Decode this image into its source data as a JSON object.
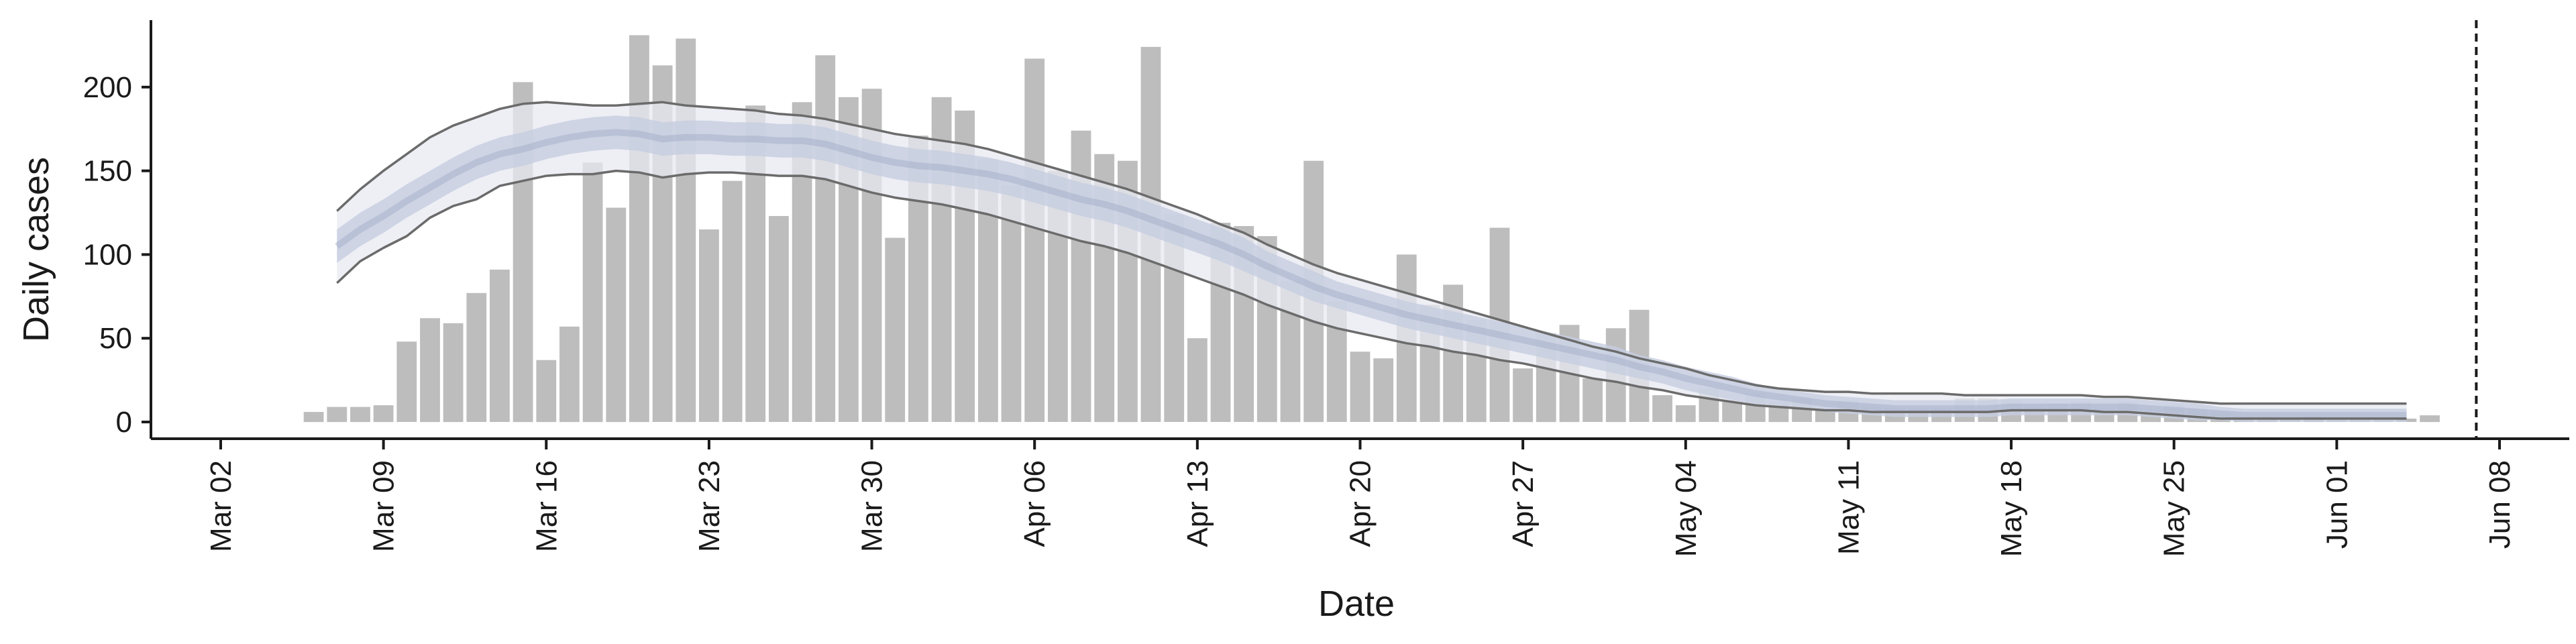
{
  "chart_data": {
    "type": "bar",
    "xlabel": "Date",
    "ylabel": "Daily cases",
    "ylim": [
      -10,
      240
    ],
    "xlim": [
      "2020-02-28",
      "2020-06-11"
    ],
    "x_ticks": [
      {
        "date": "2020-03-02",
        "label": "Mar 02"
      },
      {
        "date": "2020-03-09",
        "label": "Mar 09"
      },
      {
        "date": "2020-03-16",
        "label": "Mar 16"
      },
      {
        "date": "2020-03-23",
        "label": "Mar 23"
      },
      {
        "date": "2020-03-30",
        "label": "Mar 30"
      },
      {
        "date": "2020-04-06",
        "label": "Apr 06"
      },
      {
        "date": "2020-04-13",
        "label": "Apr 13"
      },
      {
        "date": "2020-04-20",
        "label": "Apr 20"
      },
      {
        "date": "2020-04-27",
        "label": "Apr 27"
      },
      {
        "date": "2020-05-04",
        "label": "May 04"
      },
      {
        "date": "2020-05-11",
        "label": "May 11"
      },
      {
        "date": "2020-05-18",
        "label": "May 18"
      },
      {
        "date": "2020-05-25",
        "label": "May 25"
      },
      {
        "date": "2020-06-01",
        "label": "Jun 01"
      },
      {
        "date": "2020-06-08",
        "label": "Jun 08"
      }
    ],
    "y_ticks": [
      0,
      50,
      100,
      150,
      200
    ],
    "bars": {
      "start": "2020-03-06",
      "values": [
        6,
        9,
        9,
        10,
        48,
        62,
        59,
        77,
        91,
        203,
        37,
        57,
        155,
        128,
        231,
        213,
        229,
        115,
        144,
        189,
        123,
        191,
        219,
        194,
        199,
        110,
        171,
        194,
        186,
        157,
        141,
        217,
        150,
        174,
        160,
        156,
        224,
        124,
        50,
        119,
        117,
        111,
        84,
        156,
        72,
        42,
        38,
        100,
        70,
        82,
        61,
        116,
        32,
        53,
        58,
        26,
        56,
        67,
        16,
        10,
        20,
        12,
        17,
        12,
        14,
        8,
        13,
        9,
        8,
        8,
        8,
        14,
        14,
        13,
        10,
        11,
        12,
        8,
        12,
        6,
        10,
        8,
        6,
        3,
        3,
        2,
        3,
        1,
        1,
        1,
        2,
        4
      ]
    },
    "estimate": {
      "start": "2020-03-07",
      "median": [
        105,
        115,
        123,
        132,
        140,
        148,
        155,
        160,
        163,
        167,
        170,
        172,
        173,
        172,
        169,
        170,
        170,
        169,
        169,
        168,
        168,
        166,
        162,
        158,
        155,
        153,
        152,
        150,
        148,
        145,
        141,
        137,
        133,
        130,
        126,
        121,
        116,
        111,
        106,
        100,
        93,
        87,
        81,
        76,
        72,
        68,
        64,
        61,
        58,
        55,
        52,
        49,
        46,
        43,
        40,
        37,
        33,
        30,
        26,
        23,
        20,
        17,
        15,
        13,
        11,
        10,
        9,
        8,
        8,
        8,
        8,
        8,
        9,
        9,
        9,
        9,
        9,
        9,
        8,
        7,
        6,
        5,
        4,
        4,
        4,
        4,
        4,
        4,
        4,
        4
      ],
      "inner_band": [
        [
          95,
          115
        ],
        [
          105,
          125
        ],
        [
          113,
          133
        ],
        [
          122,
          142
        ],
        [
          130,
          150
        ],
        [
          138,
          158
        ],
        [
          145,
          165
        ],
        [
          150,
          170
        ],
        [
          153,
          173
        ],
        [
          157,
          177
        ],
        [
          160,
          180
        ],
        [
          162,
          182
        ],
        [
          163,
          183
        ],
        [
          162,
          182
        ],
        [
          159,
          179
        ],
        [
          160,
          180
        ],
        [
          160,
          180
        ],
        [
          159,
          179
        ],
        [
          159,
          179
        ],
        [
          158,
          178
        ],
        [
          158,
          178
        ],
        [
          156,
          176
        ],
        [
          152,
          172
        ],
        [
          148,
          168
        ],
        [
          145,
          165
        ],
        [
          143,
          163
        ],
        [
          142,
          162
        ],
        [
          140,
          160
        ],
        [
          138,
          158
        ],
        [
          135,
          155
        ],
        [
          131,
          151
        ],
        [
          127,
          147
        ],
        [
          123,
          143
        ],
        [
          120,
          140
        ],
        [
          116,
          136
        ],
        [
          111,
          131
        ],
        [
          106,
          126
        ],
        [
          101,
          121
        ],
        [
          96,
          116
        ],
        [
          90,
          110
        ],
        [
          84,
          102
        ],
        [
          78,
          96
        ],
        [
          72,
          90
        ],
        [
          68,
          84
        ],
        [
          64,
          80
        ],
        [
          60,
          76
        ],
        [
          56,
          72
        ],
        [
          53,
          69
        ],
        [
          50,
          66
        ],
        [
          47,
          63
        ],
        [
          44,
          60
        ],
        [
          41,
          57
        ],
        [
          38,
          54
        ],
        [
          35,
          51
        ],
        [
          32,
          48
        ],
        [
          29,
          45
        ],
        [
          26,
          40
        ],
        [
          23,
          37
        ],
        [
          19,
          33
        ],
        [
          16,
          30
        ],
        [
          13,
          27
        ],
        [
          11,
          23
        ],
        [
          10,
          20
        ],
        [
          8,
          18
        ],
        [
          6,
          16
        ],
        [
          5,
          15
        ],
        [
          4,
          14
        ],
        [
          3,
          13
        ],
        [
          3,
          13
        ],
        [
          3,
          13
        ],
        [
          3,
          13
        ],
        [
          3,
          13
        ],
        [
          4,
          14
        ],
        [
          4,
          14
        ],
        [
          4,
          14
        ],
        [
          4,
          14
        ],
        [
          4,
          14
        ],
        [
          4,
          14
        ],
        [
          3,
          13
        ],
        [
          2,
          12
        ],
        [
          1,
          11
        ],
        [
          1,
          9
        ],
        [
          0,
          8
        ],
        [
          0,
          8
        ],
        [
          0,
          8
        ],
        [
          0,
          8
        ],
        [
          0,
          8
        ],
        [
          0,
          8
        ],
        [
          0,
          8
        ],
        [
          0,
          8
        ]
      ],
      "upper": [
        126,
        139,
        150,
        160,
        170,
        177,
        182,
        187,
        190,
        191,
        190,
        189,
        189,
        190,
        191,
        189,
        188,
        187,
        186,
        184,
        183,
        181,
        178,
        175,
        172,
        170,
        168,
        166,
        163,
        159,
        155,
        151,
        147,
        143,
        139,
        134,
        129,
        124,
        118,
        113,
        106,
        100,
        94,
        89,
        85,
        81,
        77,
        73,
        69,
        65,
        61,
        57,
        53,
        49,
        45,
        42,
        38,
        35,
        32,
        28,
        25,
        22,
        20,
        19,
        18,
        18,
        17,
        17,
        17,
        17,
        16,
        16,
        16,
        16,
        16,
        16,
        15,
        15,
        14,
        13,
        12,
        11,
        11,
        11,
        11,
        11,
        11,
        11,
        11,
        11
      ],
      "lower": [
        83,
        96,
        104,
        111,
        122,
        129,
        133,
        141,
        144,
        147,
        148,
        148,
        150,
        149,
        146,
        148,
        149,
        149,
        148,
        147,
        147,
        145,
        141,
        137,
        134,
        132,
        130,
        127,
        124,
        120,
        116,
        112,
        108,
        105,
        101,
        96,
        91,
        86,
        81,
        76,
        70,
        65,
        60,
        56,
        53,
        50,
        47,
        45,
        42,
        40,
        37,
        35,
        32,
        29,
        26,
        24,
        21,
        19,
        16,
        14,
        12,
        10,
        9,
        8,
        7,
        7,
        6,
        6,
        6,
        6,
        6,
        6,
        7,
        7,
        7,
        7,
        6,
        6,
        5,
        4,
        3,
        2,
        2,
        2,
        2,
        2,
        2,
        2,
        2,
        2
      ]
    },
    "vline": {
      "date": "2020-06-07",
      "style": "dashed"
    },
    "colors": {
      "bars": "#bdbdbd",
      "outer_band": "#e8eaf2",
      "inner_band": "#c6cde0",
      "median": "#a8b1cc",
      "ci_line": "#6b6b6b",
      "axis": "#1a1a1a"
    }
  }
}
